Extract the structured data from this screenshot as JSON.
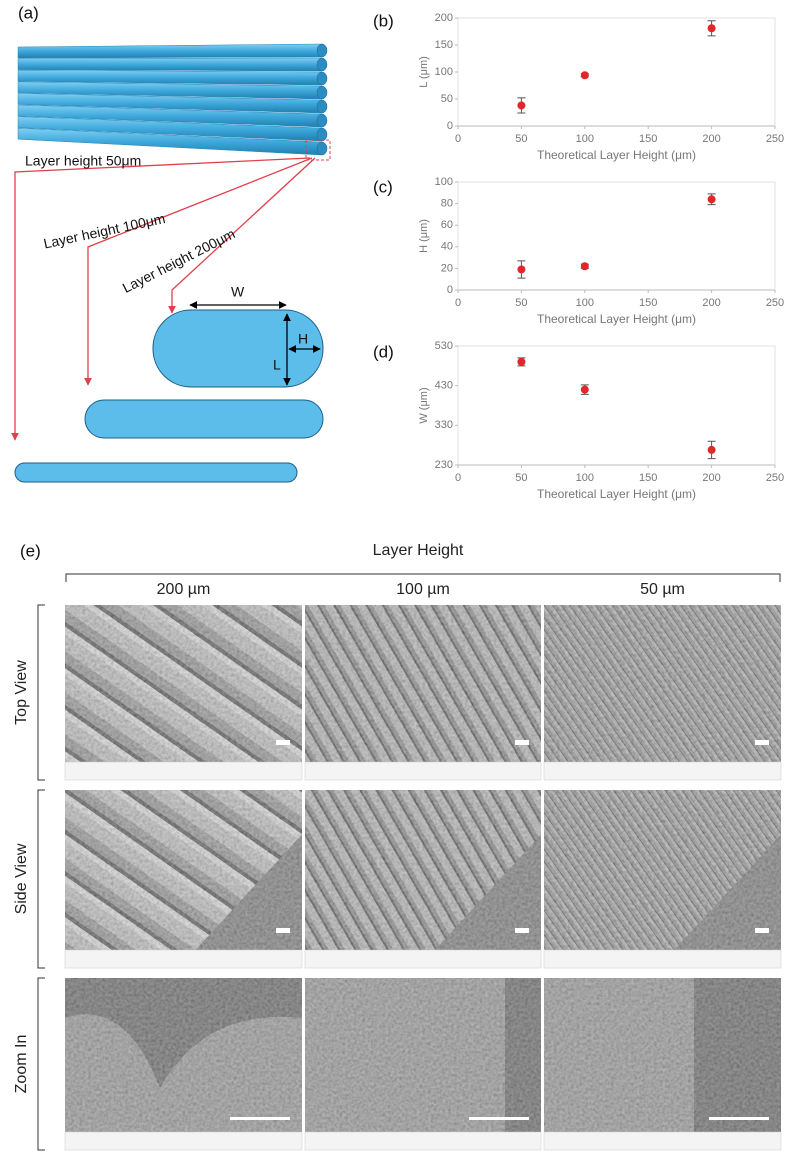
{
  "panel_labels": [
    "(a)",
    "(b)",
    "(c)",
    "(d)",
    "(e)"
  ],
  "diagram": {
    "arrows": [
      "Layer height 50μm",
      "Layer height 100μm",
      "Layer height 200μm"
    ],
    "dimensions": [
      "W",
      "H",
      "L"
    ]
  },
  "chart_data": [
    {
      "type": "scatter",
      "x": [
        50,
        100,
        200
      ],
      "values": [
        38,
        94,
        181
      ],
      "errors": [
        14,
        3,
        14
      ],
      "color": "#e3262a",
      "xlabel": "Theoretical  Layer Height (μm)",
      "ylabel": "L (μm)",
      "xlim": [
        0,
        250
      ],
      "xticks": [
        0,
        50,
        100,
        150,
        200,
        250
      ],
      "ylim": [
        0,
        200
      ],
      "yticks": [
        0,
        50,
        100,
        150,
        200
      ]
    },
    {
      "type": "scatter",
      "x": [
        50,
        100,
        200
      ],
      "values": [
        19,
        22,
        84
      ],
      "errors": [
        8,
        2,
        5
      ],
      "color": "#e3262a",
      "xlabel": "Theoretical  Layer Height (μm)",
      "ylabel": "H (μm)",
      "xlim": [
        0,
        250
      ],
      "xticks": [
        0,
        50,
        100,
        150,
        200,
        250
      ],
      "ylim": [
        0,
        100
      ],
      "yticks": [
        0,
        20,
        40,
        60,
        80,
        100
      ]
    },
    {
      "type": "scatter",
      "x": [
        50,
        100,
        200
      ],
      "values": [
        490,
        420,
        268
      ],
      "errors": [
        10,
        12,
        22
      ],
      "color": "#e3262a",
      "xlabel": "Theoretical  Layer Height (μm)",
      "ylabel": "W (μm)",
      "xlim": [
        0,
        250
      ],
      "xticks": [
        0,
        50,
        100,
        150,
        200,
        250
      ],
      "ylim": [
        230,
        530
      ],
      "yticks": [
        230,
        330,
        430,
        530
      ]
    }
  ],
  "sem_grid": {
    "title": "Layer Height",
    "columns": [
      "200 µm",
      "100 µm",
      "50 µm"
    ],
    "rows": [
      "Top View",
      "Side View",
      "Zoom In"
    ]
  }
}
